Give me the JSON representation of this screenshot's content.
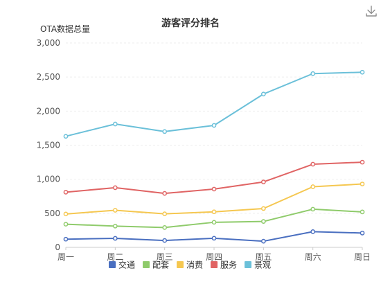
{
  "chart_data": {
    "type": "line",
    "title": "游客评分排名",
    "ylabel": "OTA数据总量",
    "xlabel": "",
    "categories": [
      "周一",
      "周二",
      "周三",
      "周四",
      "周五",
      "周六",
      "周日"
    ],
    "ylim": [
      0,
      3000
    ],
    "yticks": [
      0,
      500,
      1000,
      1500,
      2000,
      2500,
      3000
    ],
    "ytick_labels": [
      "0",
      "500",
      "1,000",
      "1,500",
      "2,000",
      "2,500",
      "3,000"
    ],
    "grid": true,
    "legend_position": "bottom",
    "series": [
      {
        "name": "交通",
        "color": "#4a6fc0",
        "values": [
          120,
          132,
          101,
          134,
          90,
          230,
          210
        ]
      },
      {
        "name": "配套",
        "color": "#8fcb6b",
        "values": [
          340,
          312,
          291,
          368,
          380,
          560,
          520
        ]
      },
      {
        "name": "消费",
        "color": "#f5c750",
        "values": [
          490,
          544,
          492,
          521,
          570,
          890,
          930
        ]
      },
      {
        "name": "服务",
        "color": "#e06464",
        "values": [
          810,
          876,
          792,
          855,
          960,
          1220,
          1250
        ]
      },
      {
        "name": "景观",
        "color": "#6bc0d9",
        "values": [
          1630,
          1810,
          1700,
          1790,
          2250,
          2550,
          2570
        ]
      }
    ]
  },
  "toolbar": {
    "download_icon": "download-icon"
  }
}
